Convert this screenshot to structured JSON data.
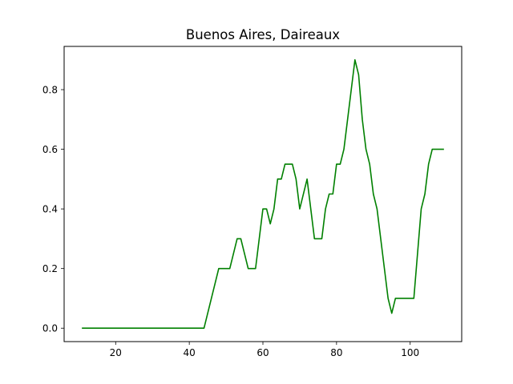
{
  "chart_data": {
    "type": "line",
    "title": "Buenos Aires, Daireaux",
    "xlabel": "",
    "ylabel": "",
    "xlim": [
      6,
      114
    ],
    "ylim": [
      -0.045,
      0.945
    ],
    "xticks": [
      20,
      40,
      60,
      80,
      100
    ],
    "yticks": [
      0.0,
      0.2,
      0.4,
      0.6,
      0.8
    ],
    "xtick_labels": [
      "20",
      "40",
      "60",
      "80",
      "100"
    ],
    "ytick_labels": [
      "0.0",
      "0.2",
      "0.4",
      "0.6",
      "0.8"
    ],
    "grid": false,
    "series": [
      {
        "color": "#008000",
        "x": [
          11,
          44,
          48,
          51,
          53,
          54,
          56,
          58,
          60,
          61,
          62,
          63,
          64,
          65,
          66,
          68,
          69,
          70,
          72,
          74,
          76,
          77,
          78,
          79,
          80,
          81,
          82,
          85,
          86,
          87,
          88,
          89,
          90,
          91,
          93,
          94,
          95,
          96,
          100,
          101,
          102,
          103,
          104,
          105,
          106,
          109
        ],
        "y": [
          0.0,
          0.0,
          0.2,
          0.2,
          0.3,
          0.3,
          0.2,
          0.2,
          0.4,
          0.4,
          0.35,
          0.4,
          0.5,
          0.5,
          0.55,
          0.55,
          0.5,
          0.4,
          0.5,
          0.3,
          0.3,
          0.4,
          0.45,
          0.45,
          0.55,
          0.55,
          0.6,
          0.9,
          0.85,
          0.7,
          0.6,
          0.55,
          0.45,
          0.4,
          0.2,
          0.1,
          0.05,
          0.1,
          0.1,
          0.1,
          0.25,
          0.4,
          0.45,
          0.55,
          0.6,
          0.6
        ]
      }
    ]
  }
}
